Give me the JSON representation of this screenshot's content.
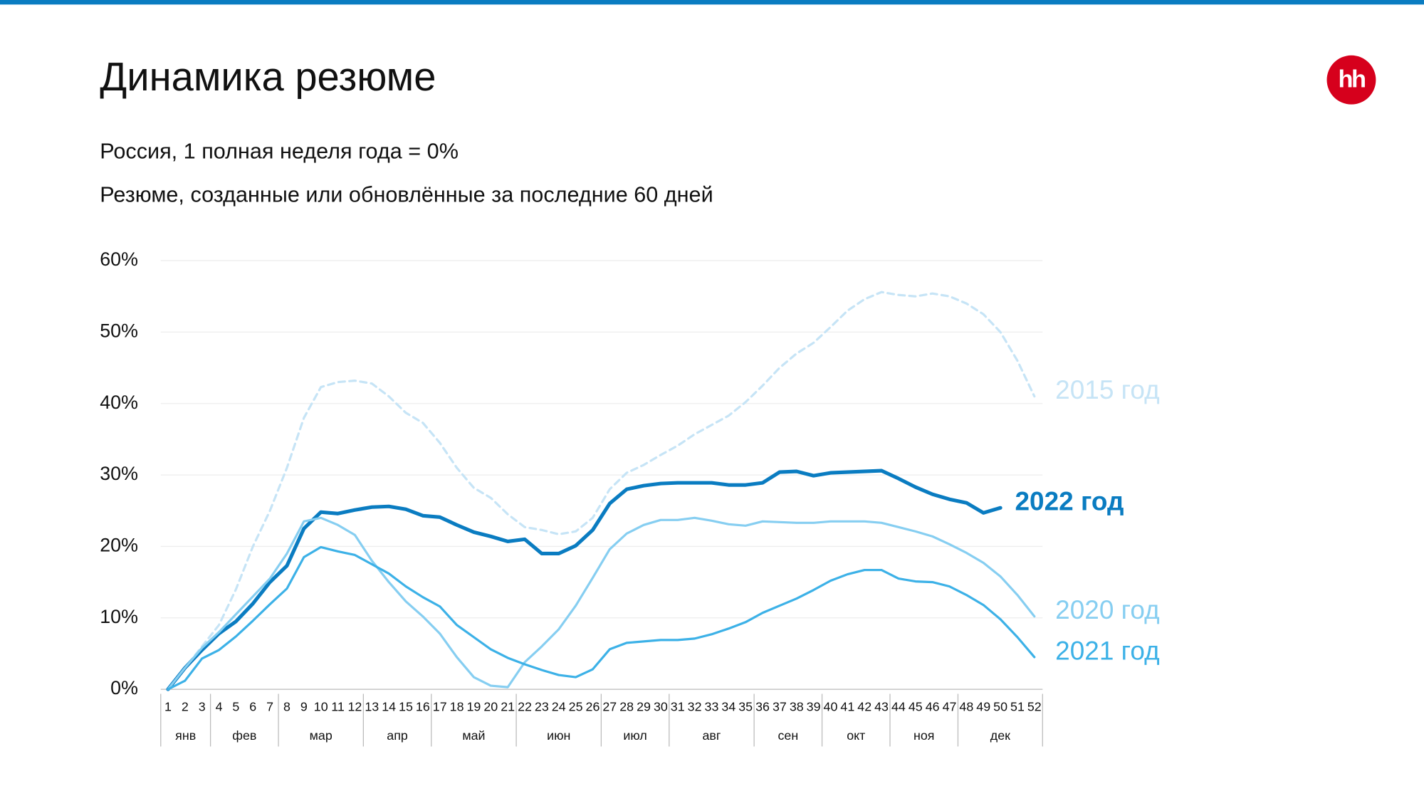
{
  "chart_data": {
    "type": "line",
    "title": "Динамика резюме",
    "subtitle": "Россия, 1 полная неделя года = 0%",
    "subtitle2": "Резюме, созданные или обновлённые за последние 60 дней",
    "logo": "hh",
    "categories": [
      "1",
      "2",
      "3",
      "4",
      "5",
      "6",
      "7",
      "8",
      "9",
      "10",
      "11",
      "12",
      "13",
      "14",
      "15",
      "16",
      "17",
      "18",
      "19",
      "20",
      "21",
      "22",
      "23",
      "24",
      "25",
      "26",
      "27",
      "28",
      "29",
      "30",
      "31",
      "32",
      "33",
      "34",
      "35",
      "36",
      "37",
      "38",
      "39",
      "40",
      "41",
      "42",
      "43",
      "44",
      "45",
      "46",
      "47",
      "48",
      "49",
      "50",
      "51",
      "52"
    ],
    "months": [
      {
        "label": "янв",
        "weeks": 3
      },
      {
        "label": "фев",
        "weeks": 4
      },
      {
        "label": "мар",
        "weeks": 5
      },
      {
        "label": "апр",
        "weeks": 4
      },
      {
        "label": "май",
        "weeks": 5
      },
      {
        "label": "июн",
        "weeks": 5
      },
      {
        "label": "июл",
        "weeks": 4
      },
      {
        "label": "авг",
        "weeks": 5
      },
      {
        "label": "сен",
        "weeks": 4
      },
      {
        "label": "окт",
        "weeks": 4
      },
      {
        "label": "ноя",
        "weeks": 4
      },
      {
        "label": "дек",
        "weeks": 5
      }
    ],
    "ylim": [
      0,
      60
    ],
    "yticks": [
      {
        "value": 0,
        "label": "0%"
      },
      {
        "value": 10,
        "label": "10%"
      },
      {
        "value": 20,
        "label": "20%"
      },
      {
        "value": 30,
        "label": "30%"
      },
      {
        "value": 40,
        "label": "40%"
      },
      {
        "value": 50,
        "label": "50%"
      },
      {
        "value": 60,
        "label": "60%"
      }
    ],
    "grid": true,
    "series": [
      {
        "name": "2015 год",
        "color": "#c6e4f6",
        "dashed": true,
        "bold": false,
        "values": [
          0,
          3,
          6,
          9,
          14,
          20,
          25,
          31,
          38,
          42.3,
          43,
          43.2,
          42.8,
          41,
          38.7,
          37.3,
          34.5,
          31,
          28.2,
          26.8,
          24.5,
          22.7,
          22.3,
          21.7,
          22.1,
          24,
          28,
          30.3,
          31.4,
          32.8,
          34.1,
          35.7,
          37,
          38.3,
          40.2,
          42.5,
          45,
          47,
          48.5,
          50.7,
          53,
          54.6,
          55.6,
          55.2,
          55,
          55.4,
          55,
          54,
          52.5,
          50,
          46,
          41
        ]
      },
      {
        "name": "2022 год",
        "color": "#0a7cc1",
        "dashed": false,
        "bold": true,
        "values": [
          0,
          3,
          5.5,
          7.8,
          9.5,
          12,
          15,
          17.3,
          22.5,
          24.8,
          24.6,
          25.1,
          25.5,
          25.6,
          25.2,
          24.3,
          24.1,
          23,
          22,
          21.4,
          20.7,
          21,
          19,
          19,
          20.1,
          22.3,
          26,
          28,
          28.5,
          28.8,
          28.9,
          28.9,
          28.9,
          28.6,
          28.6,
          28.9,
          30.4,
          30.5,
          29.9,
          30.3,
          30.4,
          30.5,
          30.6,
          29.5,
          28.3,
          27.3,
          26.6,
          26.1,
          24.7,
          25.4,
          null,
          null
        ]
      },
      {
        "name": "2020 год",
        "color": "#86cef1",
        "dashed": false,
        "bold": false,
        "values": [
          0,
          3,
          5.8,
          8,
          10.5,
          13,
          15.5,
          19,
          23.5,
          24,
          23,
          21.6,
          18,
          15,
          12.3,
          10.2,
          7.8,
          4.5,
          1.7,
          0.5,
          0.3,
          3.8,
          6,
          8.4,
          11.7,
          15.6,
          19.6,
          21.8,
          23,
          23.7,
          23.7,
          24,
          23.6,
          23.1,
          22.9,
          23.5,
          23.4,
          23.3,
          23.3,
          23.5,
          23.5,
          23.5,
          23.3,
          22.7,
          22.1,
          21.4,
          20.3,
          19.1,
          17.7,
          15.8,
          13.2,
          10.2
        ]
      },
      {
        "name": "2021 год",
        "color": "#3cb1e7",
        "dashed": false,
        "bold": false,
        "values": [
          0,
          1.2,
          4.3,
          5.5,
          7.4,
          9.6,
          11.9,
          14.1,
          18.5,
          19.9,
          19.3,
          18.8,
          17.5,
          16.2,
          14.4,
          12.9,
          11.6,
          9,
          7.3,
          5.6,
          4.4,
          3.5,
          2.7,
          2,
          1.7,
          2.8,
          5.6,
          6.5,
          6.7,
          6.9,
          6.9,
          7.1,
          7.7,
          8.5,
          9.4,
          10.7,
          11.7,
          12.7,
          13.9,
          15.2,
          16.1,
          16.7,
          16.7,
          15.5,
          15.1,
          15,
          14.4,
          13.2,
          11.8,
          9.8,
          7.3,
          4.5
        ]
      }
    ]
  }
}
